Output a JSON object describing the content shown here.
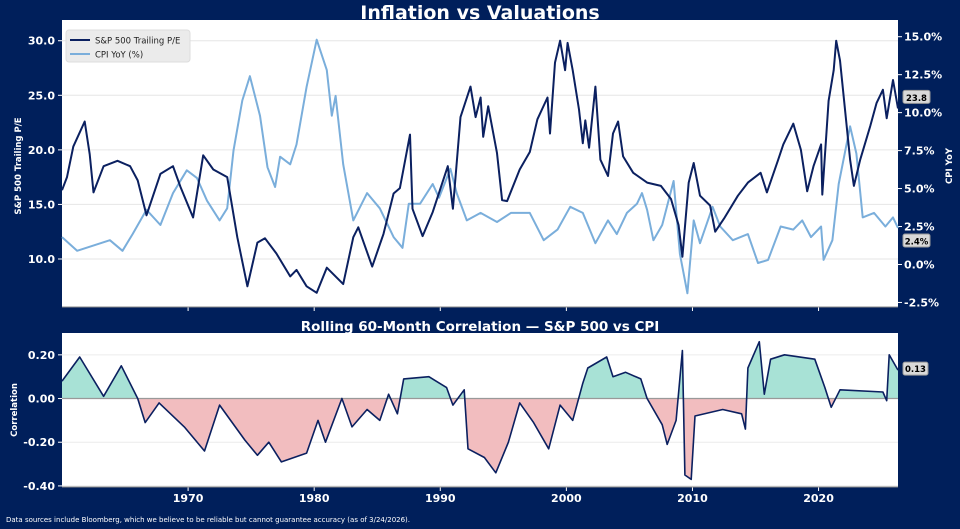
{
  "title": "Inflation vs Valuations",
  "footer": "Data sources include Bloomberg, which we believe to be reliable but cannot guarantee accuracy (as of 3/24/2026).",
  "colors": {
    "background": "#001f5b",
    "pe": "#0b2060",
    "cpi": "#7aaedb",
    "positive_fill": "#a8e2d6",
    "negative_fill": "#f2bdbf",
    "zero_line": "#999999"
  },
  "chart_data": [
    {
      "type": "line",
      "title": "",
      "ylabel": "S&P 500 Trailing P/E",
      "y2label": "CPI YoY",
      "xlim": [
        1960,
        2026.3
      ],
      "ylim": [
        5.6,
        31.9
      ],
      "y2lim": [
        -2.8,
        16.1
      ],
      "yticks": [
        "10.0",
        "15.0",
        "20.0",
        "25.0",
        "30.0"
      ],
      "yticks_values": [
        10,
        15,
        20,
        25,
        30
      ],
      "y2ticks": [
        "-2.5%",
        "0.0%",
        "2.5%",
        "5.0%",
        "7.5%",
        "10.0%",
        "12.5%",
        "15.0%"
      ],
      "y2ticks_values": [
        -2.5,
        0,
        2.5,
        5,
        7.5,
        10,
        12.5,
        15
      ],
      "xticks_values": [
        1970,
        1980,
        1990,
        2000,
        2010,
        2020
      ],
      "grid": true,
      "legend": "top-left",
      "series": [
        {
          "name": "S&P 500 Trailing P/E",
          "axis": "left",
          "x": [
            1960,
            1960.4,
            1960.9,
            1961.8,
            1962.2,
            1962.5,
            1963.3,
            1964.4,
            1965.4,
            1966,
            1966.7,
            1967.8,
            1968.8,
            1969.4,
            1970.4,
            1971.2,
            1972,
            1973.1,
            1973.9,
            1974.7,
            1975.5,
            1976.1,
            1977,
            1978.1,
            1978.6,
            1979.4,
            1980.2,
            1981,
            1982.3,
            1983.1,
            1983.5,
            1984.6,
            1985.5,
            1986.3,
            1986.8,
            1987.6,
            1987.8,
            1988.6,
            1989.4,
            1990.6,
            1991,
            1991.6,
            1992.4,
            1992.8,
            1993.2,
            1993.4,
            1993.8,
            1994.5,
            1994.9,
            1995.3,
            1996.3,
            1997.1,
            1997.7,
            1998.5,
            1998.7,
            1999.1,
            1999.5,
            1999.9,
            2000.1,
            2000.5,
            2001,
            2001.3,
            2001.5,
            2001.8,
            2002.3,
            2002.7,
            2003.3,
            2003.7,
            2004.1,
            2004.5,
            2005.3,
            2006.4,
            2007.5,
            2008.3,
            2008.9,
            2009.2,
            2009.7,
            2010.1,
            2010.6,
            2011.4,
            2011.8,
            2012.5,
            2013.6,
            2014.4,
            2015.4,
            2015.9,
            2016.8,
            2017.2,
            2018,
            2018.6,
            2019.1,
            2019.6,
            2020.2,
            2020.3,
            2020.8,
            2021.2,
            2021.4,
            2021.7,
            2022.1,
            2022.5,
            2022.8,
            2023.3,
            2024.1,
            2024.6,
            2025.1,
            2025.4,
            2025.9,
            2026.3
          ],
          "values": [
            16.3,
            17.5,
            20.3,
            22.6,
            19.6,
            16.1,
            18.5,
            19.0,
            18.5,
            17.2,
            14.0,
            17.8,
            18.5,
            16.6,
            13.8,
            19.5,
            18.2,
            17.5,
            12.0,
            7.5,
            11.5,
            11.9,
            10.5,
            8.4,
            9.0,
            7.5,
            6.9,
            9.2,
            7.7,
            12.0,
            12.9,
            9.3,
            12.3,
            16.0,
            16.5,
            21.4,
            14.6,
            12.1,
            14.3,
            18.5,
            14.6,
            23.0,
            25.8,
            23.0,
            24.8,
            21.2,
            24.0,
            19.7,
            15.4,
            15.3,
            18.2,
            19.8,
            22.8,
            24.8,
            21.5,
            28.0,
            30.0,
            27.3,
            29.8,
            27.3,
            23.7,
            20.6,
            22.7,
            20.2,
            25.8,
            19.1,
            17.6,
            21.5,
            22.6,
            19.4,
            17.9,
            17.0,
            16.7,
            15.5,
            13.1,
            10.2,
            17.0,
            18.8,
            15.8,
            14.9,
            12.5,
            13.7,
            15.8,
            17.0,
            17.9,
            16.1,
            19.1,
            20.5,
            22.4,
            20.0,
            16.2,
            18.5,
            20.5,
            15.9,
            24.5,
            27.3,
            30.0,
            28.2,
            23.7,
            19.1,
            16.7,
            19.1,
            22.2,
            24.3,
            25.5,
            22.9,
            26.4,
            23.8
          ]
        },
        {
          "name": "CPI YoY (%)",
          "axis": "right",
          "x": [
            1960,
            1961.2,
            1963.8,
            1964.8,
            1965.6,
            1966.7,
            1967.8,
            1968.8,
            1969.9,
            1970.7,
            1971.5,
            1972.5,
            1973.1,
            1973.6,
            1974.3,
            1974.9,
            1975.7,
            1976.3,
            1976.9,
            1977.3,
            1978.1,
            1978.6,
            1979.4,
            1980.2,
            1981,
            1981.4,
            1981.7,
            1982.3,
            1983.1,
            1984.2,
            1985.2,
            1986.3,
            1987,
            1987.5,
            1988.4,
            1989.4,
            1989.9,
            1990.8,
            1991.3,
            1992.1,
            1993.2,
            1994.5,
            1995.6,
            1997.1,
            1998.2,
            1999.3,
            2000.3,
            2001.3,
            2002.3,
            2003.3,
            2004,
            2004.8,
            2005.6,
            2006,
            2006.4,
            2006.9,
            2007.6,
            2008.5,
            2009,
            2009.6,
            2010.1,
            2010.6,
            2011.6,
            2012.2,
            2013.2,
            2014.4,
            2015.2,
            2016,
            2017,
            2018,
            2018.7,
            2019.4,
            2020.2,
            2020.4,
            2021.1,
            2021.6,
            2022.5,
            2023,
            2023.5,
            2024.4,
            2025.3,
            2025.9,
            2026.3
          ],
          "values": [
            1.8,
            0.9,
            1.6,
            0.9,
            2.0,
            3.6,
            2.6,
            4.7,
            6.2,
            5.7,
            4.2,
            2.9,
            3.7,
            7.5,
            10.8,
            12.4,
            9.8,
            6.4,
            5.1,
            7.1,
            6.6,
            7.9,
            11.7,
            14.8,
            12.8,
            9.8,
            11.1,
            6.6,
            2.9,
            4.7,
            3.7,
            1.8,
            1.1,
            4.0,
            4.0,
            5.3,
            4.4,
            6.3,
            4.7,
            2.9,
            3.4,
            2.8,
            3.4,
            3.4,
            1.6,
            2.3,
            3.8,
            3.4,
            1.4,
            2.9,
            2.0,
            3.4,
            4.0,
            4.7,
            3.6,
            1.6,
            2.6,
            5.5,
            0.7,
            -1.9,
            2.9,
            1.4,
            3.8,
            2.5,
            1.6,
            2.0,
            0.1,
            0.3,
            2.5,
            2.3,
            2.9,
            1.8,
            2.5,
            0.3,
            1.6,
            5.3,
            9.1,
            7.3,
            3.1,
            3.4,
            2.5,
            3.1,
            2.4
          ]
        }
      ],
      "annotations": [
        "23.8",
        "2.4%"
      ]
    },
    {
      "type": "area",
      "title": "Rolling 60-Month Correlation — S&P 500 vs CPI",
      "ylabel": "Correlation",
      "xlim": [
        1960,
        2026.3
      ],
      "ylim": [
        -0.405,
        0.3
      ],
      "yticks": [
        "-0.40",
        "-0.20",
        "0.00",
        "0.20"
      ],
      "yticks_values": [
        -0.4,
        -0.2,
        0,
        0.2
      ],
      "xticks": [
        "1970",
        "1980",
        "1990",
        "2000",
        "2010",
        "2020"
      ],
      "xticks_values": [
        1970,
        1980,
        1990,
        2000,
        2010,
        2020
      ],
      "grid": true,
      "series": [
        {
          "x": [
            1960,
            1961.4,
            1963.3,
            1964.7,
            1966,
            1966.6,
            1967.7,
            1969.7,
            1971.3,
            1972.5,
            1974.5,
            1975.5,
            1976.4,
            1977.4,
            1979.4,
            1980.3,
            1980.9,
            1982.2,
            1983,
            1984.2,
            1985.2,
            1985.9,
            1986.6,
            1987.1,
            1989.1,
            1990.5,
            1991,
            1991.9,
            1992.2,
            1993.5,
            1994.4,
            1995.4,
            1996.3,
            1997.4,
            1998.6,
            1999.5,
            2000.5,
            2001.3,
            2001.7,
            2003.2,
            2003.7,
            2004.7,
            2005.9,
            2006.4,
            2007.6,
            2008,
            2008.7,
            2009.2,
            2009.4,
            2009.9,
            2010.2,
            2012.4,
            2013.9,
            2014.2,
            2014.4,
            2015.3,
            2015.7,
            2016.2,
            2017.3,
            2019.7,
            2020.5,
            2021,
            2021.7,
            2025.1,
            2025.4,
            2025.6,
            2026.3
          ],
          "values": [
            0.08,
            0.19,
            0.01,
            0.15,
            0.0,
            -0.11,
            -0.02,
            -0.13,
            -0.24,
            -0.03,
            -0.19,
            -0.26,
            -0.2,
            -0.29,
            -0.25,
            -0.1,
            -0.2,
            0.0,
            -0.13,
            -0.05,
            -0.1,
            0.02,
            -0.07,
            0.09,
            0.1,
            0.05,
            -0.03,
            0.04,
            -0.23,
            -0.27,
            -0.34,
            -0.2,
            -0.02,
            -0.11,
            -0.23,
            -0.03,
            -0.1,
            0.07,
            0.14,
            0.19,
            0.1,
            0.12,
            0.09,
            0.0,
            -0.12,
            -0.21,
            -0.1,
            0.22,
            -0.35,
            -0.37,
            -0.08,
            -0.05,
            -0.07,
            -0.14,
            0.14,
            0.26,
            0.02,
            0.18,
            0.2,
            0.18,
            0.05,
            -0.04,
            0.04,
            0.03,
            -0.01,
            0.2,
            0.13
          ]
        }
      ],
      "annotations": [
        "0.13"
      ]
    }
  ]
}
